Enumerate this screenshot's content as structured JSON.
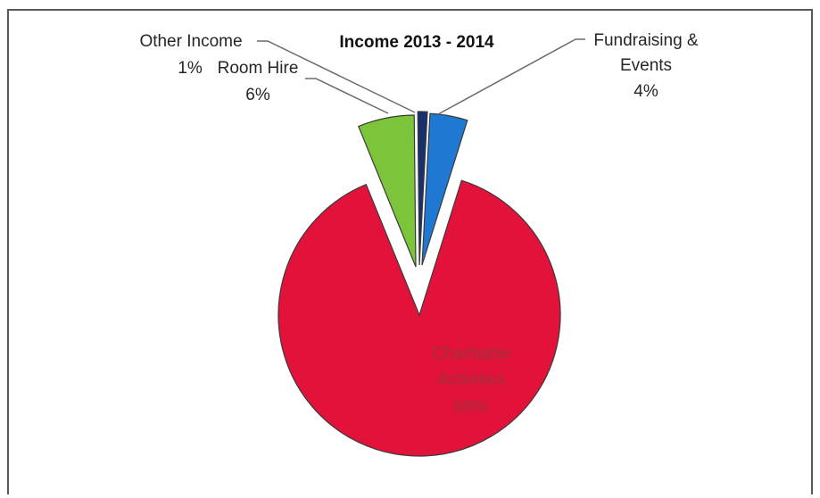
{
  "chart_data": {
    "type": "pie",
    "title": "Income 2013 - 2014",
    "exploded": true,
    "slices": [
      {
        "name": "Fundraising &",
        "name2": "Events",
        "value": 4,
        "label": "4%",
        "color": "#1f78d1"
      },
      {
        "name": "Charitable",
        "name2": "Activities",
        "value": 89,
        "label": "89%",
        "color": "#e3123a"
      },
      {
        "name": "Room Hire",
        "value": 6,
        "label": "6%",
        "color": "#7cc43a"
      },
      {
        "name": "Other Income",
        "value": 1,
        "label": "1%",
        "color": "#1a2f6e"
      }
    ]
  }
}
